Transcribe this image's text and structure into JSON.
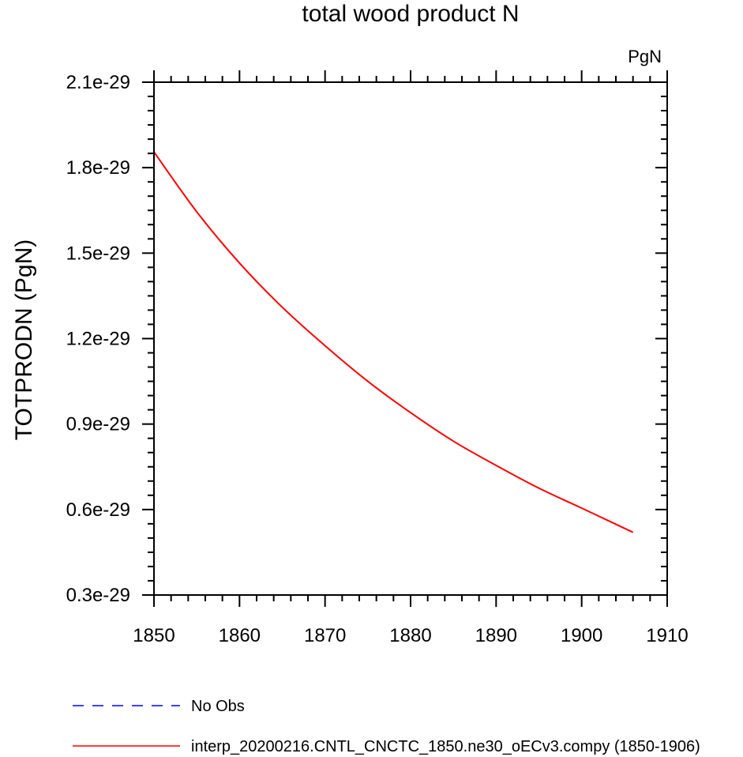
{
  "chart_data": {
    "type": "line",
    "title": "total wood product N",
    "units_label": "PgN",
    "xlabel": "",
    "ylabel": "TOTPRODN  (PgN)",
    "xlim": [
      1850,
      1910
    ],
    "ylim": [
      3e-30,
      2.1e-29
    ],
    "x_ticks": [
      1850,
      1860,
      1870,
      1880,
      1890,
      1900,
      1910
    ],
    "x_tick_labels": [
      "1850",
      "1860",
      "1870",
      "1880",
      "1890",
      "1900",
      "1910"
    ],
    "y_ticks": [
      3e-30,
      6e-30,
      9e-30,
      1.2e-29,
      1.5e-29,
      1.8e-29,
      2.1e-29
    ],
    "y_tick_labels": [
      "0.3e-29",
      "0.6e-29",
      "0.9e-29",
      "1.2e-29",
      "1.5e-29",
      "1.8e-29",
      "2.1e-29"
    ],
    "grid": false,
    "series": [
      {
        "name": "interp_20200216.CNTL_CNCTC_1850.ne30_oECv3.compy (1850-1906)",
        "color": "#ff0000",
        "style": "solid",
        "x": [
          1850,
          1855,
          1860,
          1865,
          1870,
          1875,
          1880,
          1885,
          1890,
          1895,
          1900,
          1906
        ],
        "y": [
          1.855e-29,
          1.645e-29,
          1.465e-29,
          1.31e-29,
          1.175e-29,
          1.05e-29,
          9.4e-30,
          8.4e-30,
          7.55e-30,
          6.75e-30,
          6.05e-30,
          5.2e-30
        ]
      }
    ],
    "legend": [
      {
        "label": "No Obs",
        "color": "#0000ff",
        "style": "dashed"
      },
      {
        "label": "interp_20200216.CNTL_CNCTC_1850.ne30_oECv3.compy (1850-1906)",
        "color": "#ff0000",
        "style": "solid"
      }
    ],
    "legend_position": "bottom-left"
  }
}
